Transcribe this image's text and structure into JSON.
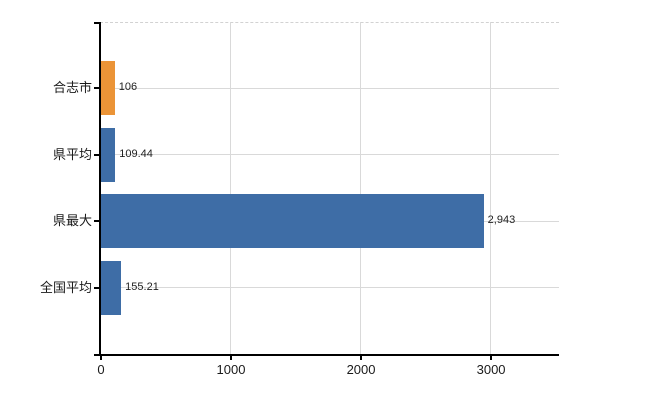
{
  "chart_data": {
    "type": "bar",
    "orientation": "horizontal",
    "title": "",
    "categories": [
      "合志市",
      "県平均",
      "県最大",
      "全国平均"
    ],
    "values": [
      106,
      109.44,
      2943,
      155.21
    ],
    "value_labels": [
      "106",
      "109.44",
      "2,943",
      "155.21"
    ],
    "bar_colors": [
      "#EB9437",
      "#3E6DA6",
      "#3E6DA6",
      "#3E6DA6"
    ],
    "x_ticks": [
      0,
      1000,
      2000,
      3000
    ],
    "x_tick_labels": [
      "0",
      "1000",
      "2000",
      "3000"
    ],
    "xlim": [
      0,
      3530
    ],
    "grid": true,
    "legend": false,
    "xlabel": "",
    "ylabel": ""
  },
  "colors": {
    "highlight_bar": "#EB9437",
    "default_bar": "#3E6DA6",
    "gridline": "#D9D9D9",
    "axis": "#000000",
    "background": "#FFFFFF",
    "label_text": "#1A1A1A"
  }
}
